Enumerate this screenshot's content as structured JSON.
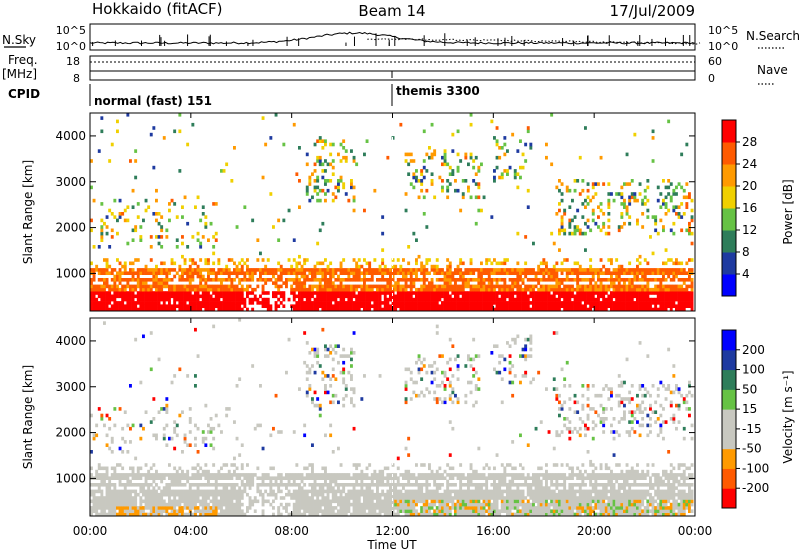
{
  "header": {
    "station": "Hokkaido (fitACF)",
    "beam": "Beam 14",
    "date": "17/Jul/2009"
  },
  "panels": {
    "nsky": {
      "left_label": "N.Sky",
      "right_label": "N.Search",
      "ticks": [
        "10^5",
        "10^0"
      ],
      "right_ticks": [
        "10^5",
        "10^0"
      ]
    },
    "freq": {
      "left_label_1": "Freq.",
      "left_label_2": "[MHz]",
      "right_label": "Nave",
      "ticks": [
        "18",
        "8"
      ],
      "right_ticks": [
        "60",
        "0"
      ]
    },
    "cpid": {
      "label": "CPID",
      "segments": [
        {
          "text": "normal (fast) 151",
          "start_hour": 0
        },
        {
          "text": "themis 3300",
          "start_hour": 12
        }
      ]
    }
  },
  "colors": {
    "power": [
      "#0000ff",
      "#1e3aa0",
      "#2e7d5a",
      "#66c244",
      "#f0d000",
      "#ff9a00",
      "#ff5a00",
      "#ff0000"
    ],
    "velocity": [
      "#ff0000",
      "#ff5a00",
      "#ff9a00",
      "#c8c8c0",
      "#c8c8c0",
      "#66c244",
      "#2e7d5a",
      "#1e3aa0",
      "#0000ff"
    ],
    "ground": "#c8c8c0"
  },
  "chart_data": [
    {
      "type": "heatmap",
      "name": "power",
      "ylabel": "Slant Range [km]",
      "yticks": [
        1000,
        2000,
        3000,
        4000
      ],
      "ylim": [
        180,
        4500
      ],
      "colorbar_label": "Power [dB]",
      "colorbar_ticks": [
        "4",
        "8",
        "12",
        "16",
        "20",
        "24",
        "28"
      ],
      "colorbar_range": [
        0,
        32
      ]
    },
    {
      "type": "heatmap",
      "name": "velocity",
      "ylabel": "Slant Range [km]",
      "yticks": [
        1000,
        2000,
        3000,
        4000
      ],
      "ylim": [
        180,
        4500
      ],
      "colorbar_label": "Velocity [m s⁻¹]",
      "colorbar_ticks": [
        "200",
        "100",
        "50",
        "15",
        "-15",
        "-50",
        "-100",
        "-200"
      ]
    }
  ],
  "x_axis": {
    "label": "Time UT",
    "ticks": [
      "00:00",
      "04:00",
      "08:00",
      "12:00",
      "16:00",
      "20:00",
      "00:00"
    ],
    "range_hours": [
      0,
      24
    ]
  }
}
